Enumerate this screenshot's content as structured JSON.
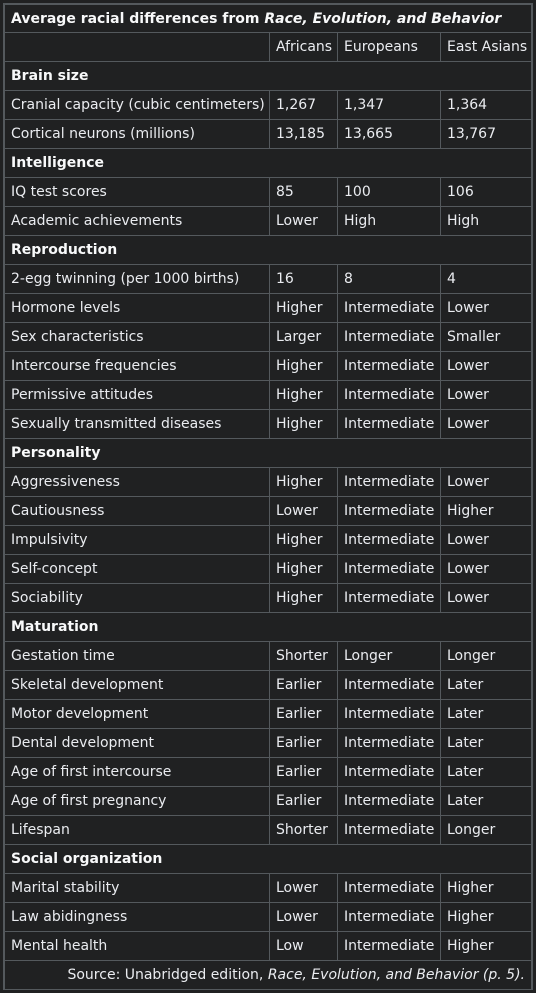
{
  "caption": {
    "prefix": "Average racial differences from ",
    "title_italic": "Race, Evolution, and Behavior"
  },
  "columns": [
    "",
    "Africans",
    "Europeans",
    "East Asians"
  ],
  "sections": [
    {
      "name": "Brain size",
      "rows": [
        [
          "Cranial capacity (cubic centimeters)",
          "1,267",
          "1,347",
          "1,364"
        ],
        [
          "Cortical neurons (millions)",
          "13,185",
          "13,665",
          "13,767"
        ]
      ]
    },
    {
      "name": "Intelligence",
      "rows": [
        [
          "IQ test scores",
          "85",
          "100",
          "106"
        ],
        [
          "Academic achievements",
          "Lower",
          "High",
          "High"
        ]
      ]
    },
    {
      "name": "Reproduction",
      "rows": [
        [
          "2-egg twinning (per 1000 births)",
          "16",
          "8",
          "4"
        ],
        [
          "Hormone levels",
          "Higher",
          "Intermediate",
          "Lower"
        ],
        [
          "Sex characteristics",
          "Larger",
          "Intermediate",
          "Smaller"
        ],
        [
          "Intercourse frequencies",
          "Higher",
          "Intermediate",
          "Lower"
        ],
        [
          "Permissive attitudes",
          "Higher",
          "Intermediate",
          "Lower"
        ],
        [
          "Sexually transmitted diseases",
          "Higher",
          "Intermediate",
          "Lower"
        ]
      ]
    },
    {
      "name": "Personality",
      "rows": [
        [
          "Aggressiveness",
          "Higher",
          "Intermediate",
          "Lower"
        ],
        [
          "Cautiousness",
          "Lower",
          "Intermediate",
          "Higher"
        ],
        [
          "Impulsivity",
          "Higher",
          "Intermediate",
          "Lower"
        ],
        [
          "Self-concept",
          "Higher",
          "Intermediate",
          "Lower"
        ],
        [
          "Sociability",
          "Higher",
          "Intermediate",
          "Lower"
        ]
      ]
    },
    {
      "name": "Maturation",
      "rows": [
        [
          "Gestation time",
          "Shorter",
          "Longer",
          "Longer"
        ],
        [
          "Skeletal development",
          "Earlier",
          "Intermediate",
          "Later"
        ],
        [
          "Motor development",
          "Earlier",
          "Intermediate",
          "Later"
        ],
        [
          "Dental development",
          "Earlier",
          "Intermediate",
          "Later"
        ],
        [
          "Age of first intercourse",
          "Earlier",
          "Intermediate",
          "Later"
        ],
        [
          "Age of first pregnancy",
          "Earlier",
          "Intermediate",
          "Later"
        ],
        [
          "Lifespan",
          "Shorter",
          "Intermediate",
          "Longer"
        ]
      ]
    },
    {
      "name": "Social organization",
      "rows": [
        [
          "Marital stability",
          "Lower",
          "Intermediate",
          "Higher"
        ],
        [
          "Law abidingness",
          "Lower",
          "Intermediate",
          "Higher"
        ],
        [
          "Mental health",
          "Low",
          "Intermediate",
          "Higher"
        ]
      ]
    }
  ],
  "source": {
    "prefix": "Source: Unabridged edition, ",
    "title_italic": "Race, Evolution, and Behavior",
    "suffix": " (p. 5)."
  },
  "colors": {
    "background": "#202122",
    "border": "#54595d",
    "text": "#eaecf0"
  }
}
